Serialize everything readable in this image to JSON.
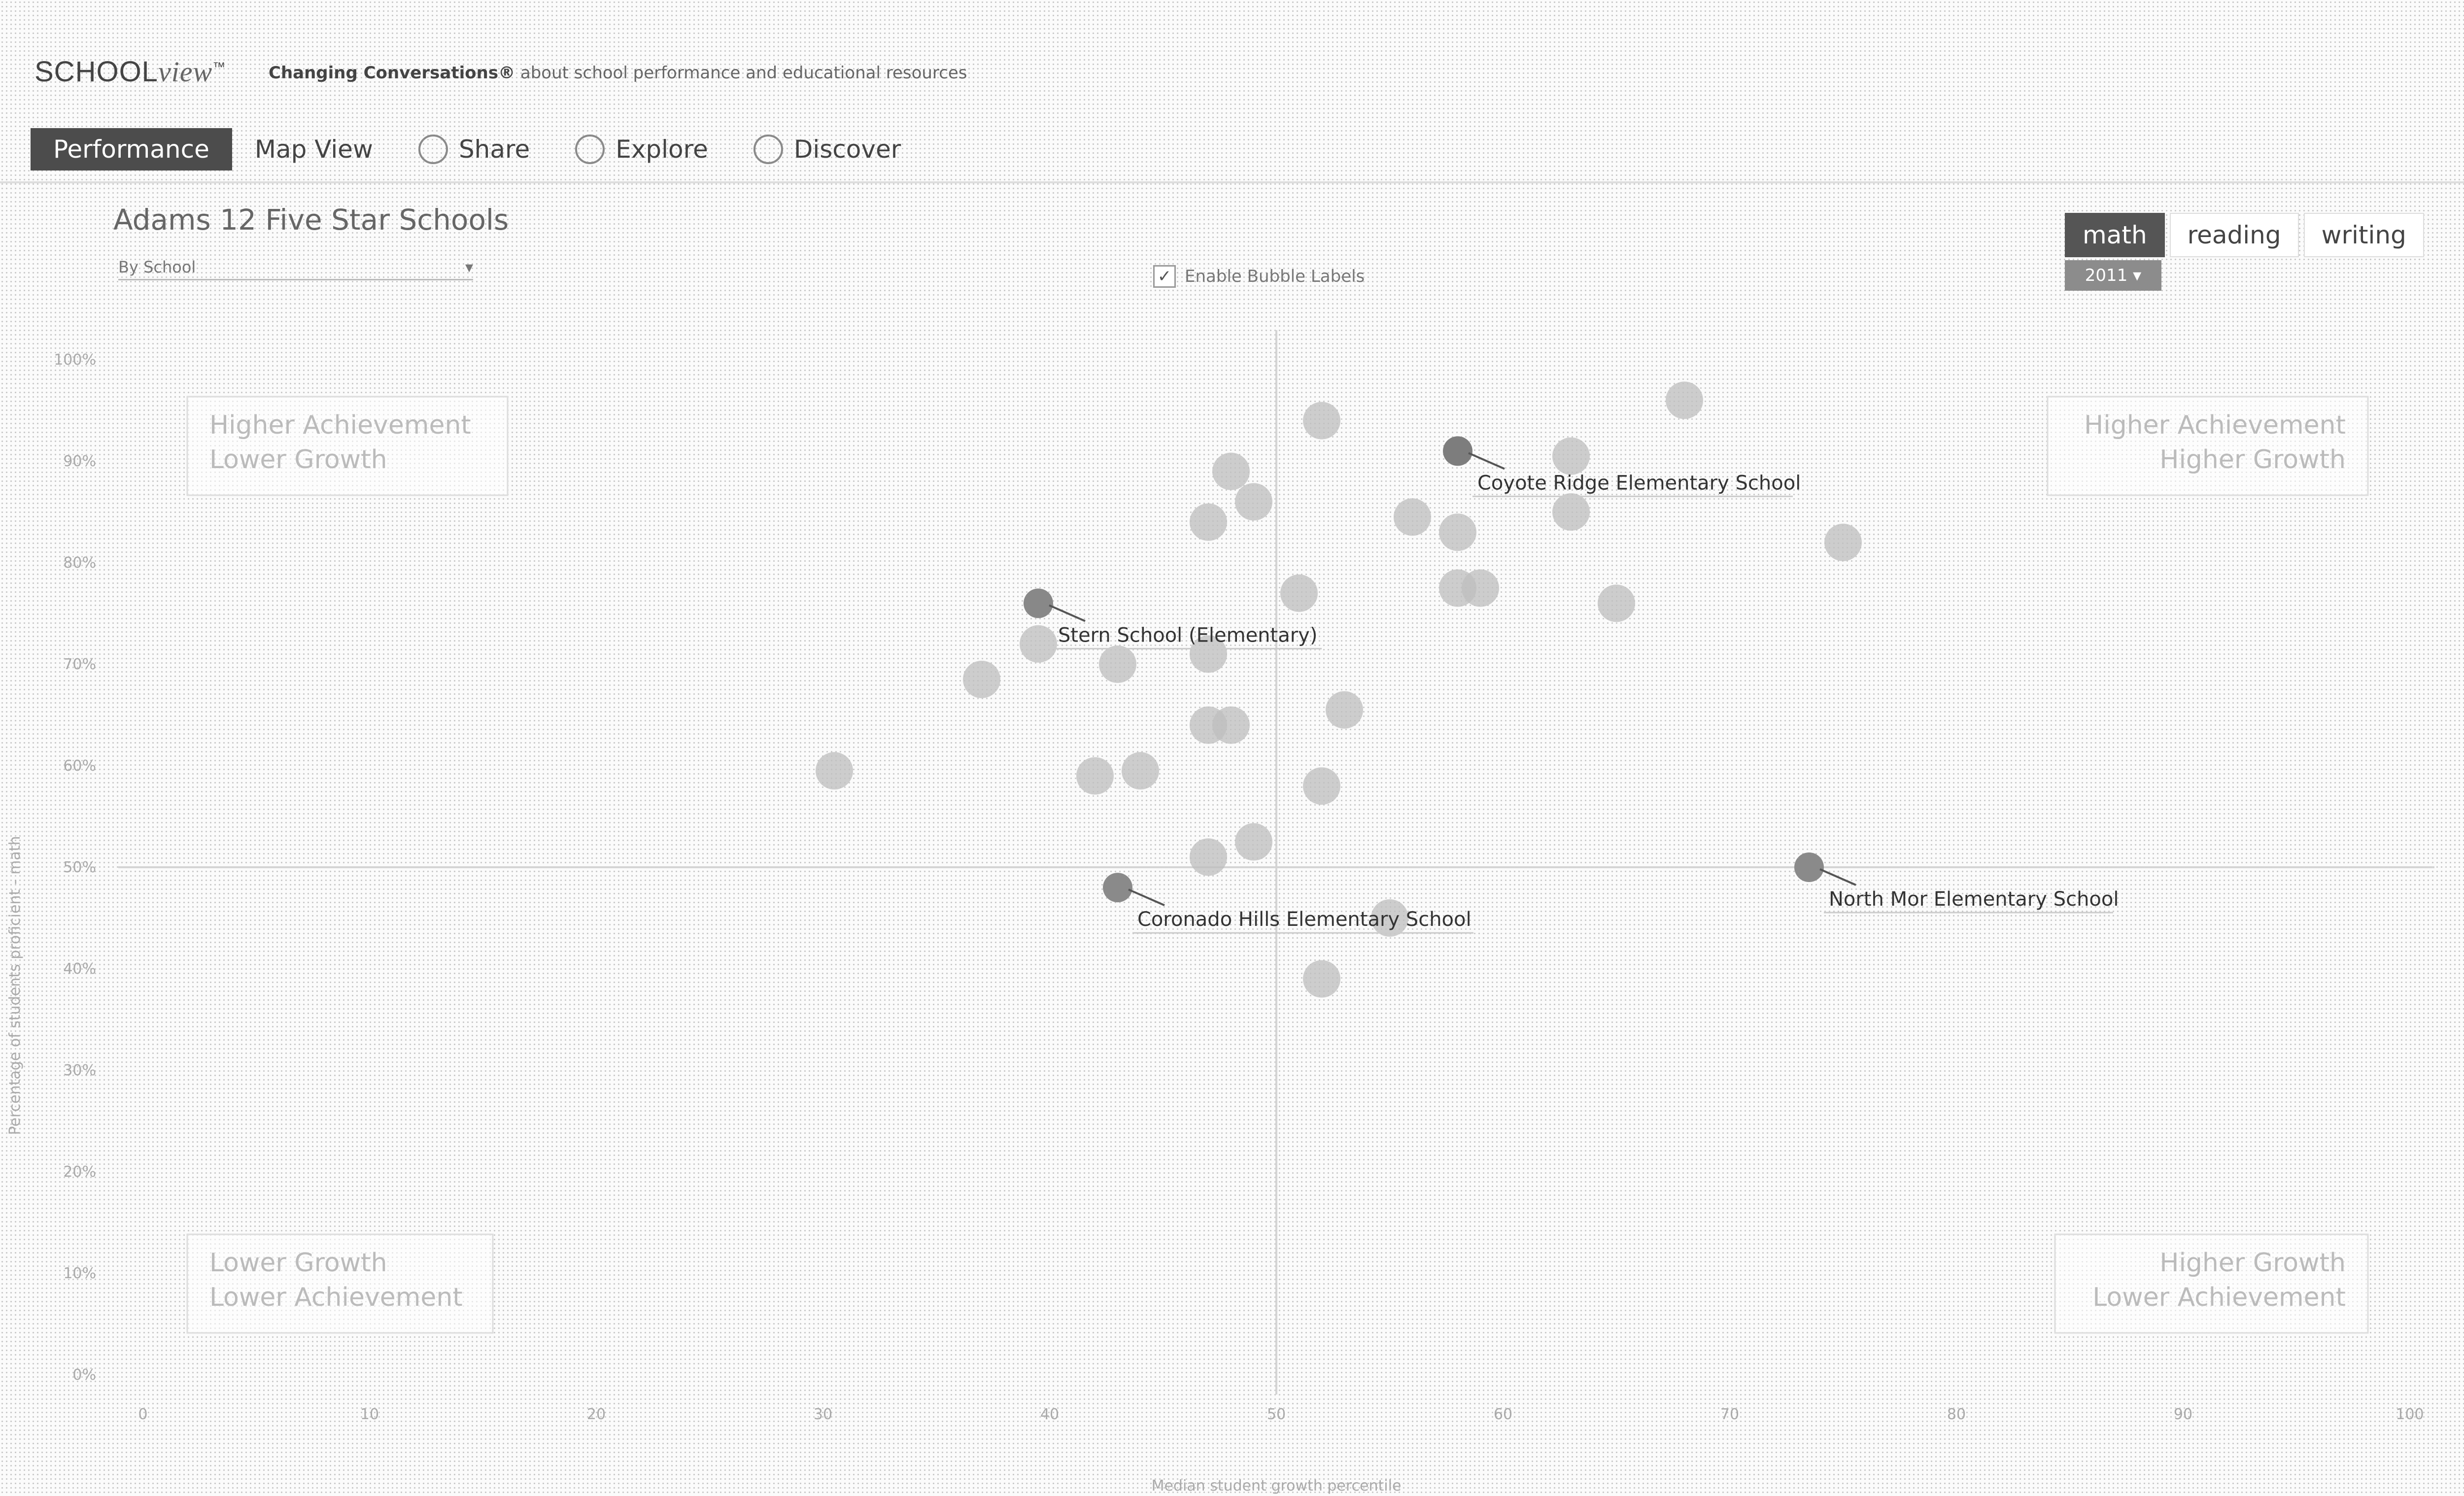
{
  "app": {
    "brand_school": "SCHOOL",
    "brand_view": "view",
    "brand_mark": "™",
    "tagline_bold": "Changing Conversations®",
    "tagline_rest": "about school performance and educational resources"
  },
  "nav": {
    "items": [
      {
        "label": "Performance",
        "active": true
      },
      {
        "label": "Map View"
      },
      {
        "label": "Share",
        "icon": "share-icon"
      },
      {
        "label": "Explore",
        "icon": "explore-icon"
      },
      {
        "label": "Discover",
        "icon": "discover-icon"
      }
    ]
  },
  "page": {
    "title": "Adams 12 Five Star Schools",
    "select_value": "By School",
    "bubble_labels_text": "Enable Bubble Labels",
    "bubble_labels_checked": true
  },
  "subjects": {
    "items": [
      "math",
      "reading",
      "writing"
    ],
    "active": "math",
    "year": "2011"
  },
  "chart_data": {
    "type": "scatter",
    "xlabel": "Median student growth percentile",
    "ylabel": "Percentage of students proficient - math",
    "xlim": [
      0,
      100
    ],
    "ylim": [
      0,
      100
    ],
    "x_ticks": [
      "0",
      "10",
      "20",
      "30",
      "40",
      "50",
      "60",
      "70",
      "80",
      "90",
      "100"
    ],
    "y_ticks": [
      "100%",
      "90%",
      "80%",
      "70%",
      "60%",
      "50%",
      "40%",
      "30%",
      "20%",
      "10%",
      "0%"
    ],
    "quadrants": {
      "top_left": [
        "Higher Achievement",
        "Lower Growth"
      ],
      "top_right": [
        "Higher Achievement",
        "Higher Growth"
      ],
      "bottom_left": [
        "Lower Growth",
        "Lower Achievement"
      ],
      "bottom_right": [
        "Higher Growth",
        "Lower Achievement"
      ]
    },
    "labeled_points": [
      {
        "label": "Coyote Ridge Elementary School",
        "x": 58,
        "y": 91,
        "color": "#7d7d7d"
      },
      {
        "label": "Stern School (Elementary)",
        "x": 39.5,
        "y": 76,
        "color": "#888888"
      },
      {
        "label": "Coronado Hills Elementary School",
        "x": 43,
        "y": 48,
        "color": "#8a8a8a"
      },
      {
        "label": "North Mor Elementary School",
        "x": 73.5,
        "y": 50,
        "color": "#8a8a8a"
      }
    ],
    "points": [
      {
        "x": 52,
        "y": 94
      },
      {
        "x": 68,
        "y": 96
      },
      {
        "x": 63,
        "y": 90.5
      },
      {
        "x": 48,
        "y": 89
      },
      {
        "x": 49,
        "y": 86
      },
      {
        "x": 56,
        "y": 84.5
      },
      {
        "x": 58,
        "y": 83
      },
      {
        "x": 63,
        "y": 85
      },
      {
        "x": 47,
        "y": 84
      },
      {
        "x": 75,
        "y": 82
      },
      {
        "x": 58,
        "y": 77.5
      },
      {
        "x": 59,
        "y": 77.5
      },
      {
        "x": 65,
        "y": 76
      },
      {
        "x": 51,
        "y": 77
      },
      {
        "x": 39.5,
        "y": 72
      },
      {
        "x": 43,
        "y": 70
      },
      {
        "x": 47,
        "y": 71
      },
      {
        "x": 37,
        "y": 68.5
      },
      {
        "x": 53,
        "y": 65.5
      },
      {
        "x": 47,
        "y": 64
      },
      {
        "x": 48,
        "y": 64
      },
      {
        "x": 30.5,
        "y": 59.5
      },
      {
        "x": 42,
        "y": 59
      },
      {
        "x": 44,
        "y": 59.5
      },
      {
        "x": 52,
        "y": 58
      },
      {
        "x": 49,
        "y": 52.5
      },
      {
        "x": 47,
        "y": 51
      },
      {
        "x": 55,
        "y": 45
      },
      {
        "x": 52,
        "y": 39
      }
    ]
  }
}
